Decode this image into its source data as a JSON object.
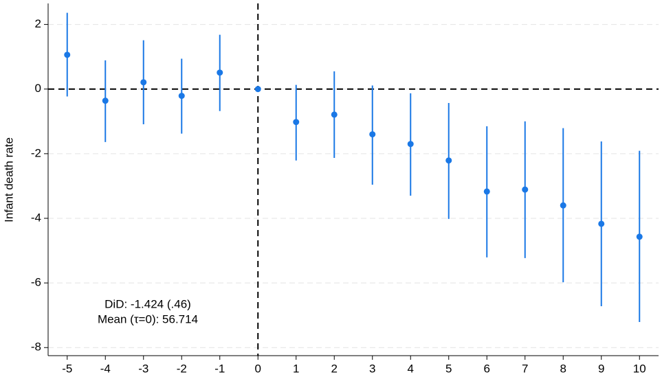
{
  "chart_data": {
    "type": "errorbar",
    "y_label": "Infant death rate",
    "annotations": [
      "DiD: -1.424 (.46)",
      "Mean (τ=0): 56.714"
    ],
    "x": [
      -5,
      -4,
      -3,
      -2,
      -1,
      0,
      1,
      2,
      3,
      4,
      5,
      6,
      7,
      8,
      9,
      10
    ],
    "values": [
      1.06,
      -0.36,
      0.21,
      -0.21,
      0.51,
      0,
      -1.02,
      -0.79,
      -1.4,
      -1.7,
      -2.21,
      -3.17,
      -3.11,
      -3.6,
      -4.17,
      -4.57
    ],
    "lower": [
      -0.23,
      -1.64,
      -1.09,
      -1.38,
      -0.68,
      null,
      -2.21,
      -2.13,
      -2.96,
      -3.3,
      -4.02,
      -5.21,
      -5.23,
      -5.98,
      -6.72,
      -7.21
    ],
    "upper": [
      2.36,
      0.89,
      1.51,
      0.94,
      1.68,
      null,
      0.13,
      0.55,
      0.11,
      -0.13,
      -0.43,
      -1.15,
      -1.0,
      -1.21,
      -1.62,
      -1.91
    ],
    "color": "#1a78e6",
    "xlim": [
      -5.5,
      10.5
    ],
    "ylim": [
      -8.25,
      2.65
    ],
    "xticks": [
      -5,
      -4,
      -3,
      -2,
      -1,
      0,
      1,
      2,
      3,
      4,
      5,
      6,
      7,
      8,
      9,
      10
    ],
    "yticks": [
      -8,
      -6,
      -4,
      -2,
      0,
      2
    ],
    "grid": true,
    "hline": 0,
    "vline": 0
  }
}
